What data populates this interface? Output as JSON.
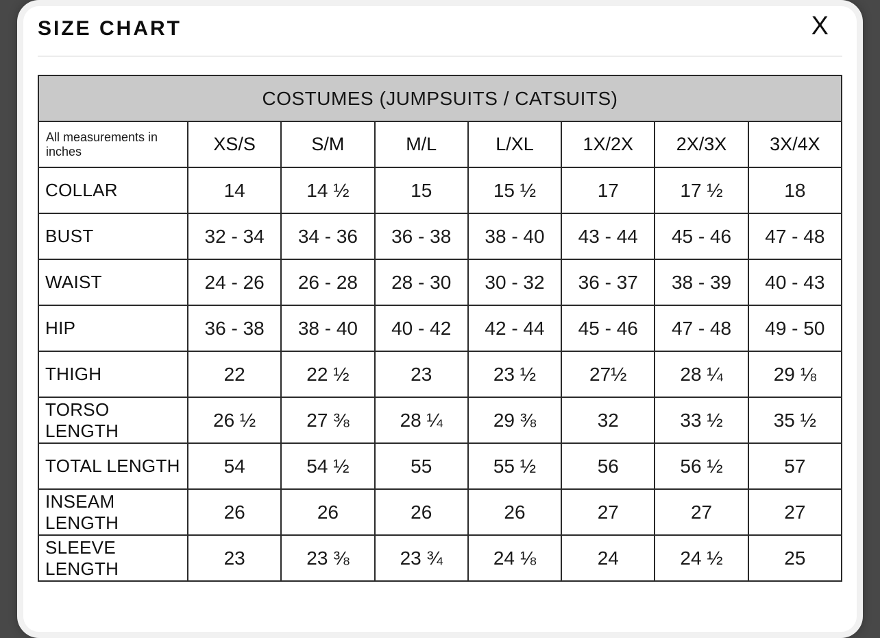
{
  "modal": {
    "title": "SIZE CHART",
    "close_label": "X"
  },
  "table": {
    "title": "COSTUMES (JUMPSUITS / CATSUITS)",
    "corner_label": "All measurements in inches",
    "columns": [
      "XS/S",
      "S/M",
      "M/L",
      "L/XL",
      "1X/2X",
      "2X/3X",
      "3X/4X"
    ],
    "rows": [
      {
        "label": "COLLAR",
        "values": [
          "14",
          "14 ½",
          "15",
          "15 ½",
          "17",
          "17 ½",
          "18"
        ]
      },
      {
        "label": "BUST",
        "values": [
          "32 - 34",
          "34 - 36",
          "36 - 38",
          "38 - 40",
          "43 - 44",
          "45 - 46",
          "47 - 48"
        ]
      },
      {
        "label": "WAIST",
        "values": [
          "24 - 26",
          "26 - 28",
          "28 - 30",
          "30 - 32",
          "36 - 37",
          "38 - 39",
          "40 - 43"
        ]
      },
      {
        "label": "HIP",
        "values": [
          "36 - 38",
          "38 - 40",
          "40 - 42",
          "42 - 44",
          "45 - 46",
          "47 - 48",
          "49 - 50"
        ]
      },
      {
        "label": "THIGH",
        "values": [
          "22",
          "22 ½",
          "23",
          "23 ½",
          "27½",
          "28 ¼",
          "29 ⅛"
        ]
      },
      {
        "label": "TORSO LENGTH",
        "values": [
          "26 ½",
          "27 ⅜",
          "28 ¼",
          "29 ⅜",
          "32",
          "33 ½",
          "35 ½"
        ]
      },
      {
        "label": "TOTAL LENGTH",
        "values": [
          "54",
          "54 ½",
          "55",
          "55 ½",
          "56",
          "56 ½",
          "57"
        ]
      },
      {
        "label": "INSEAM LENGTH",
        "values": [
          "26",
          "26",
          "26",
          "26",
          "27",
          "27",
          "27"
        ]
      },
      {
        "label": "SLEEVE LENGTH",
        "values": [
          "23",
          "23 ⅜",
          "23 ¾",
          "24 ⅛",
          "24",
          "24 ½",
          "25"
        ]
      }
    ]
  },
  "colors": {
    "backdrop": "#484848",
    "table_header_bg": "#c9c9c9",
    "table_border": "#2a2a2a",
    "text": "#111111"
  }
}
